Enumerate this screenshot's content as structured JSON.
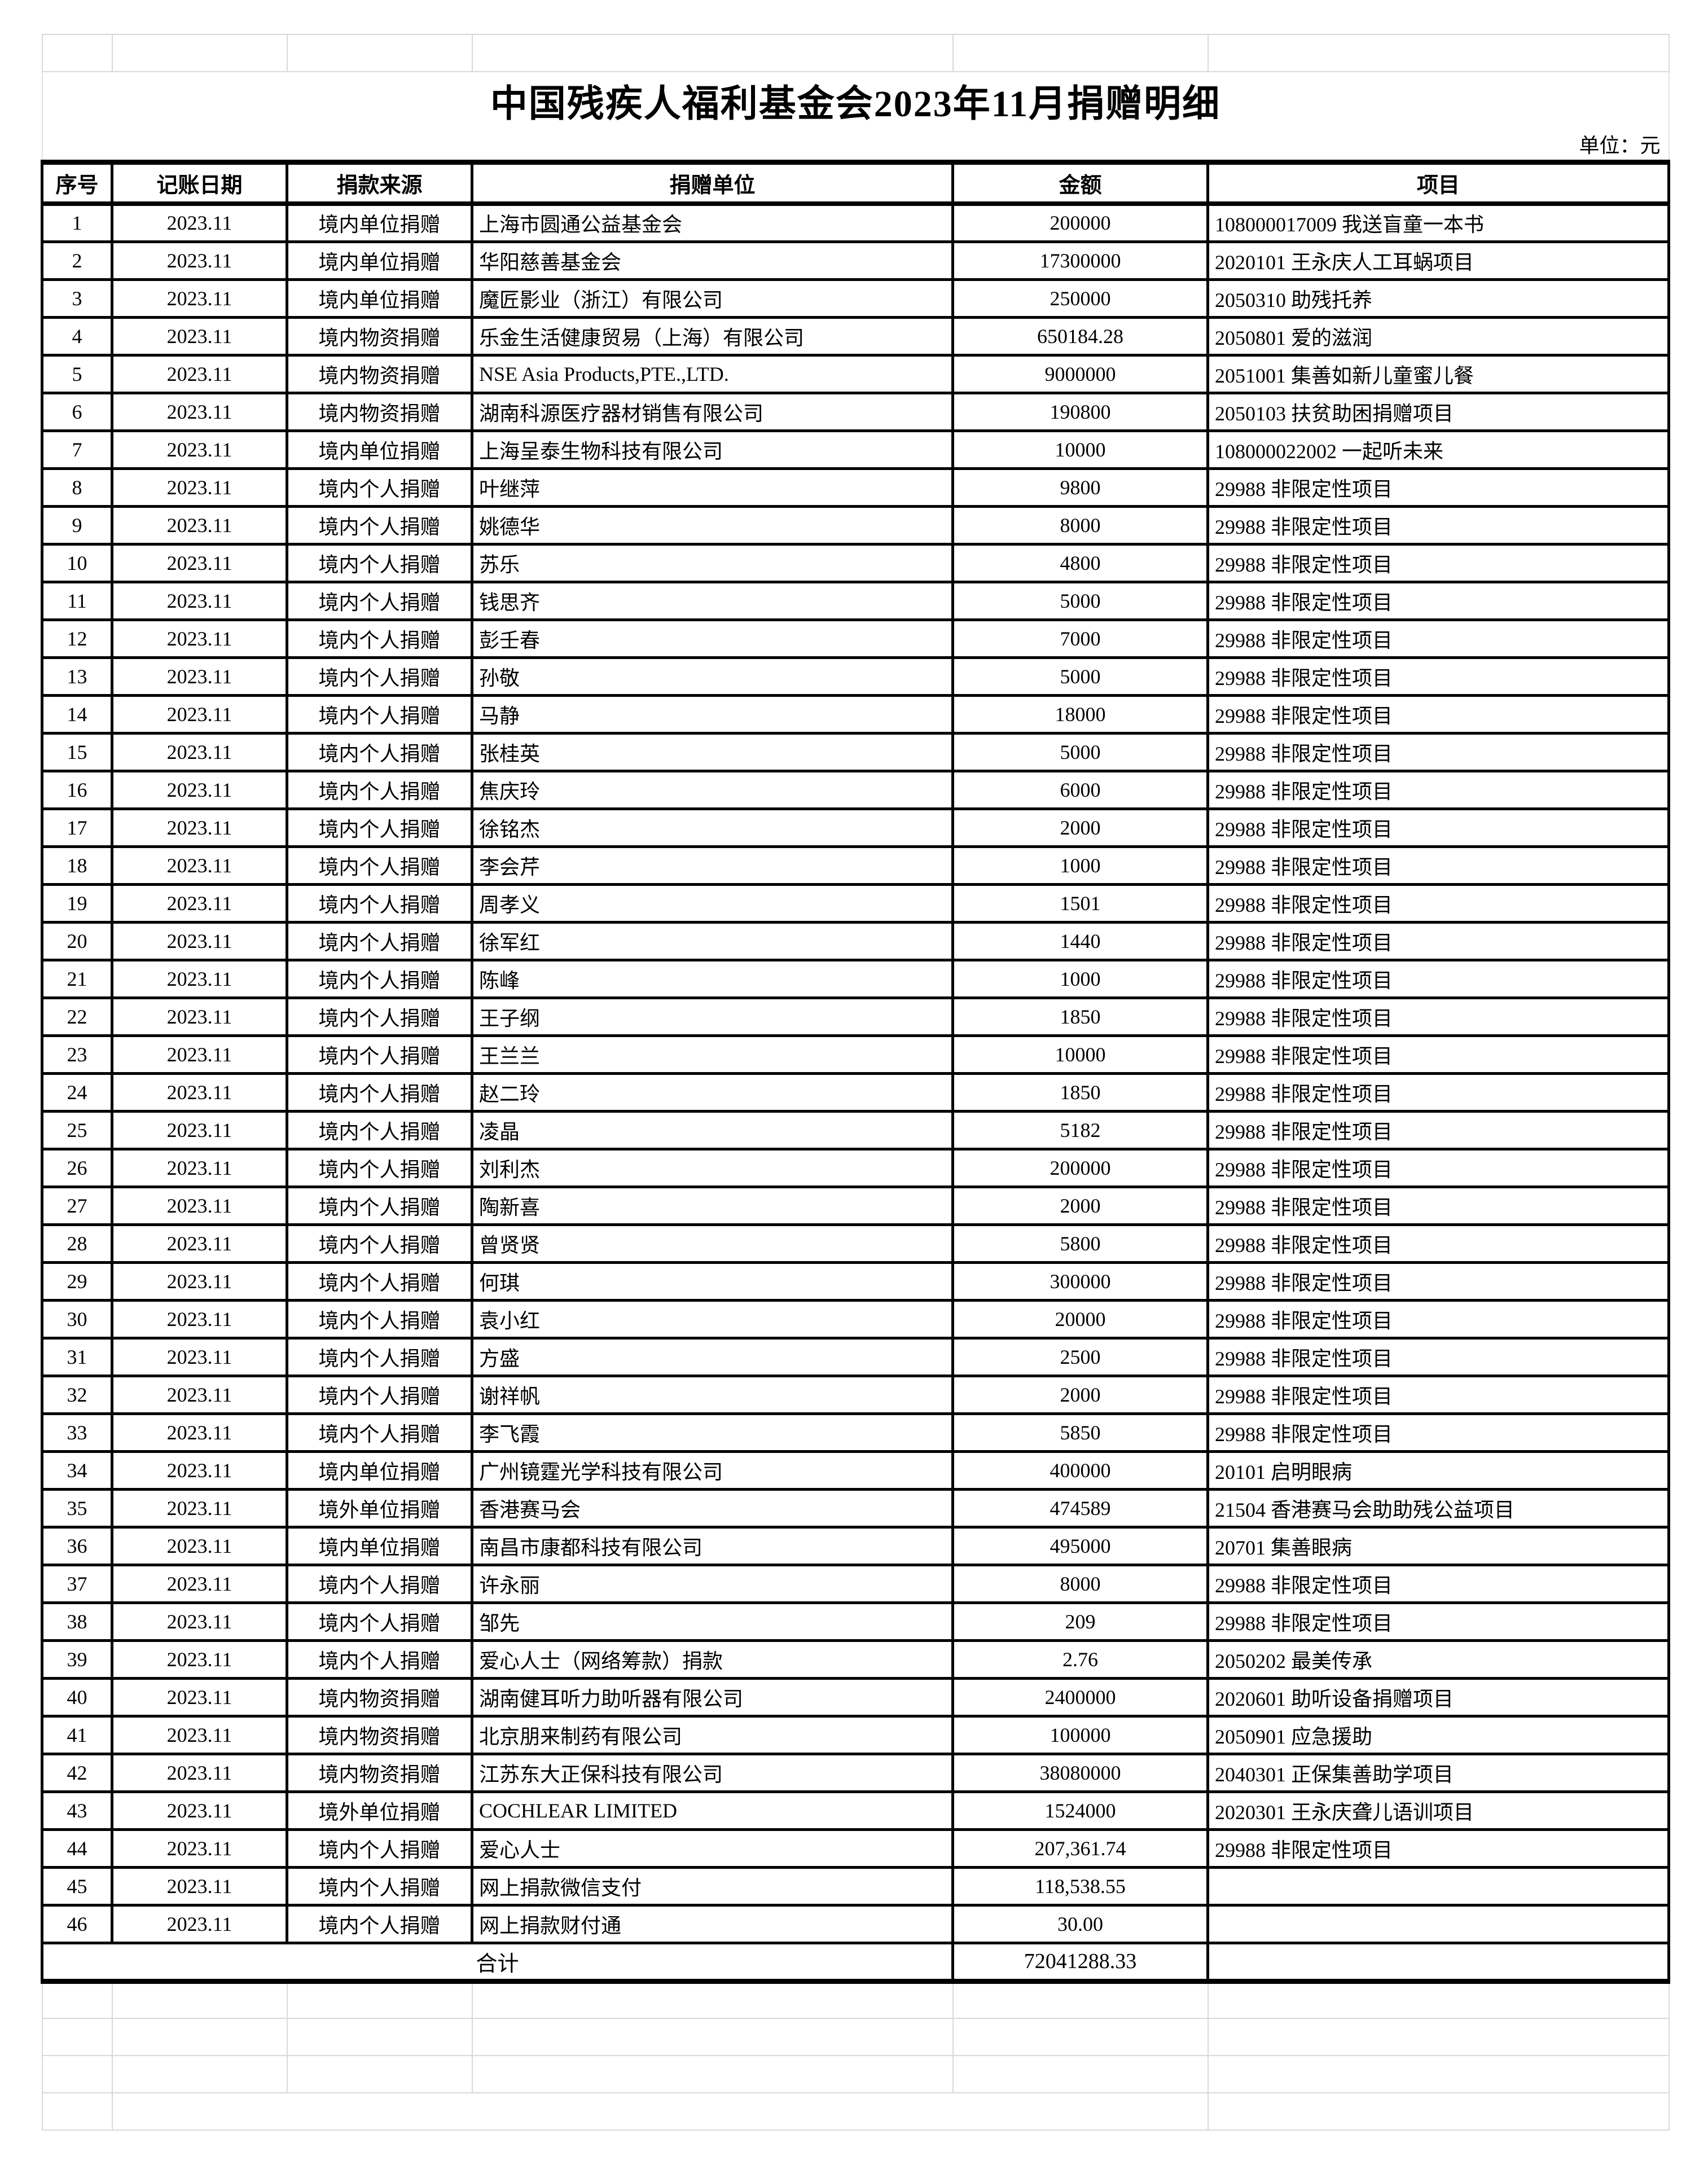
{
  "title": "中国残疾人福利基金会2023年11月捐赠明细",
  "unit_label": "单位：元",
  "columns": [
    "序号",
    "记账日期",
    "捐款来源",
    "捐赠单位",
    "金额",
    "项目"
  ],
  "rows": [
    {
      "no": "1",
      "date": "2023.11",
      "source": "境内单位捐赠",
      "donor": "上海市圆通公益基金会",
      "amount": "200000",
      "project": "108000017009 我送盲童一本书"
    },
    {
      "no": "2",
      "date": "2023.11",
      "source": "境内单位捐赠",
      "donor": "华阳慈善基金会",
      "amount": "17300000",
      "project": "2020101 王永庆人工耳蜗项目"
    },
    {
      "no": "3",
      "date": "2023.11",
      "source": "境内单位捐赠",
      "donor": "魔匠影业（浙江）有限公司",
      "amount": "250000",
      "project": "2050310 助残托养"
    },
    {
      "no": "4",
      "date": "2023.11",
      "source": "境内物资捐赠",
      "donor": "乐金生活健康贸易（上海）有限公司",
      "amount": "650184.28",
      "project": "2050801 爱的滋润"
    },
    {
      "no": "5",
      "date": "2023.11",
      "source": "境内物资捐赠",
      "donor": "NSE Asia Products,PTE.,LTD.",
      "amount": "9000000",
      "project": "2051001 集善如新儿童蜜儿餐"
    },
    {
      "no": "6",
      "date": "2023.11",
      "source": "境内物资捐赠",
      "donor": "湖南科源医疗器材销售有限公司",
      "amount": "190800",
      "project": "2050103 扶贫助困捐赠项目"
    },
    {
      "no": "7",
      "date": "2023.11",
      "source": "境内单位捐赠",
      "donor": "上海呈泰生物科技有限公司",
      "amount": "10000",
      "project": "108000022002 一起听未来"
    },
    {
      "no": "8",
      "date": "2023.11",
      "source": "境内个人捐赠",
      "donor": "叶继萍",
      "amount": "9800",
      "project": "29988 非限定性项目"
    },
    {
      "no": "9",
      "date": "2023.11",
      "source": "境内个人捐赠",
      "donor": "姚德华",
      "amount": "8000",
      "project": "29988 非限定性项目"
    },
    {
      "no": "10",
      "date": "2023.11",
      "source": "境内个人捐赠",
      "donor": "苏乐",
      "amount": "4800",
      "project": "29988 非限定性项目"
    },
    {
      "no": "11",
      "date": "2023.11",
      "source": "境内个人捐赠",
      "donor": "钱思齐",
      "amount": "5000",
      "project": "29988 非限定性项目"
    },
    {
      "no": "12",
      "date": "2023.11",
      "source": "境内个人捐赠",
      "donor": "彭壬春",
      "amount": "7000",
      "project": "29988 非限定性项目"
    },
    {
      "no": "13",
      "date": "2023.11",
      "source": "境内个人捐赠",
      "donor": "孙敬",
      "amount": "5000",
      "project": "29988 非限定性项目"
    },
    {
      "no": "14",
      "date": "2023.11",
      "source": "境内个人捐赠",
      "donor": "马静",
      "amount": "18000",
      "project": "29988 非限定性项目"
    },
    {
      "no": "15",
      "date": "2023.11",
      "source": "境内个人捐赠",
      "donor": "张桂英",
      "amount": "5000",
      "project": "29988 非限定性项目"
    },
    {
      "no": "16",
      "date": "2023.11",
      "source": "境内个人捐赠",
      "donor": "焦庆玲",
      "amount": "6000",
      "project": "29988 非限定性项目"
    },
    {
      "no": "17",
      "date": "2023.11",
      "source": "境内个人捐赠",
      "donor": "徐铭杰",
      "amount": "2000",
      "project": "29988 非限定性项目"
    },
    {
      "no": "18",
      "date": "2023.11",
      "source": "境内个人捐赠",
      "donor": "李会芹",
      "amount": "1000",
      "project": "29988 非限定性项目"
    },
    {
      "no": "19",
      "date": "2023.11",
      "source": "境内个人捐赠",
      "donor": "周孝义",
      "amount": "1501",
      "project": "29988 非限定性项目"
    },
    {
      "no": "20",
      "date": "2023.11",
      "source": "境内个人捐赠",
      "donor": "徐军红",
      "amount": "1440",
      "project": "29988 非限定性项目"
    },
    {
      "no": "21",
      "date": "2023.11",
      "source": "境内个人捐赠",
      "donor": "陈峰",
      "amount": "1000",
      "project": "29988 非限定性项目"
    },
    {
      "no": "22",
      "date": "2023.11",
      "source": "境内个人捐赠",
      "donor": "王子纲",
      "amount": "1850",
      "project": "29988 非限定性项目"
    },
    {
      "no": "23",
      "date": "2023.11",
      "source": "境内个人捐赠",
      "donor": "王兰兰",
      "amount": "10000",
      "project": "29988 非限定性项目"
    },
    {
      "no": "24",
      "date": "2023.11",
      "source": "境内个人捐赠",
      "donor": "赵二玲",
      "amount": "1850",
      "project": "29988 非限定性项目"
    },
    {
      "no": "25",
      "date": "2023.11",
      "source": "境内个人捐赠",
      "donor": "凌晶",
      "amount": "5182",
      "project": "29988 非限定性项目"
    },
    {
      "no": "26",
      "date": "2023.11",
      "source": "境内个人捐赠",
      "donor": "刘利杰",
      "amount": "200000",
      "project": "29988 非限定性项目"
    },
    {
      "no": "27",
      "date": "2023.11",
      "source": "境内个人捐赠",
      "donor": "陶新喜",
      "amount": "2000",
      "project": "29988 非限定性项目"
    },
    {
      "no": "28",
      "date": "2023.11",
      "source": "境内个人捐赠",
      "donor": "曾贤贤",
      "amount": "5800",
      "project": "29988 非限定性项目"
    },
    {
      "no": "29",
      "date": "2023.11",
      "source": "境内个人捐赠",
      "donor": "何琪",
      "amount": "300000",
      "project": "29988 非限定性项目"
    },
    {
      "no": "30",
      "date": "2023.11",
      "source": "境内个人捐赠",
      "donor": "袁小红",
      "amount": "20000",
      "project": "29988 非限定性项目"
    },
    {
      "no": "31",
      "date": "2023.11",
      "source": "境内个人捐赠",
      "donor": "方盛",
      "amount": "2500",
      "project": "29988 非限定性项目"
    },
    {
      "no": "32",
      "date": "2023.11",
      "source": "境内个人捐赠",
      "donor": "谢祥帆",
      "amount": "2000",
      "project": "29988 非限定性项目"
    },
    {
      "no": "33",
      "date": "2023.11",
      "source": "境内个人捐赠",
      "donor": "李飞霞",
      "amount": "5850",
      "project": "29988 非限定性项目"
    },
    {
      "no": "34",
      "date": "2023.11",
      "source": "境内单位捐赠",
      "donor": "广州镜霆光学科技有限公司",
      "amount": "400000",
      "project": "20101 启明眼病"
    },
    {
      "no": "35",
      "date": "2023.11",
      "source": "境外单位捐赠",
      "donor": "香港赛马会",
      "amount": "474589",
      "project": "21504 香港赛马会助助残公益项目"
    },
    {
      "no": "36",
      "date": "2023.11",
      "source": "境内单位捐赠",
      "donor": "南昌市康都科技有限公司",
      "amount": "495000",
      "project": "20701 集善眼病"
    },
    {
      "no": "37",
      "date": "2023.11",
      "source": "境内个人捐赠",
      "donor": "许永丽",
      "amount": "8000",
      "project": "29988 非限定性项目"
    },
    {
      "no": "38",
      "date": "2023.11",
      "source": "境内个人捐赠",
      "donor": "邹先",
      "amount": "209",
      "project": "29988 非限定性项目"
    },
    {
      "no": "39",
      "date": "2023.11",
      "source": "境内个人捐赠",
      "donor": "爱心人士（网络筹款）捐款",
      "amount": "2.76",
      "project": "2050202 最美传承"
    },
    {
      "no": "40",
      "date": "2023.11",
      "source": "境内物资捐赠",
      "donor": "湖南健耳听力助听器有限公司",
      "amount": "2400000",
      "project": "2020601 助听设备捐赠项目"
    },
    {
      "no": "41",
      "date": "2023.11",
      "source": "境内物资捐赠",
      "donor": "北京朋来制药有限公司",
      "amount": "100000",
      "project": "2050901 应急援助"
    },
    {
      "no": "42",
      "date": "2023.11",
      "source": "境内物资捐赠",
      "donor": "江苏东大正保科技有限公司",
      "amount": "38080000",
      "project": "2040301 正保集善助学项目"
    },
    {
      "no": "43",
      "date": "2023.11",
      "source": "境外单位捐赠",
      "donor": "COCHLEAR LIMITED",
      "amount": "1524000",
      "project": "2020301 王永庆聋儿语训项目"
    },
    {
      "no": "44",
      "date": "2023.11",
      "source": "境内个人捐赠",
      "donor": "爱心人士",
      "amount": "207,361.74",
      "project": "29988 非限定性项目"
    },
    {
      "no": "45",
      "date": "2023.11",
      "source": "境内个人捐赠",
      "donor": "网上捐款微信支付",
      "amount": "118,538.55",
      "project": ""
    },
    {
      "no": "46",
      "date": "2023.11",
      "source": "境内个人捐赠",
      "donor": "网上捐款财付通",
      "amount": "30.00",
      "project": ""
    }
  ],
  "total": {
    "label": "合计",
    "amount": "72041288.33",
    "project": ""
  }
}
